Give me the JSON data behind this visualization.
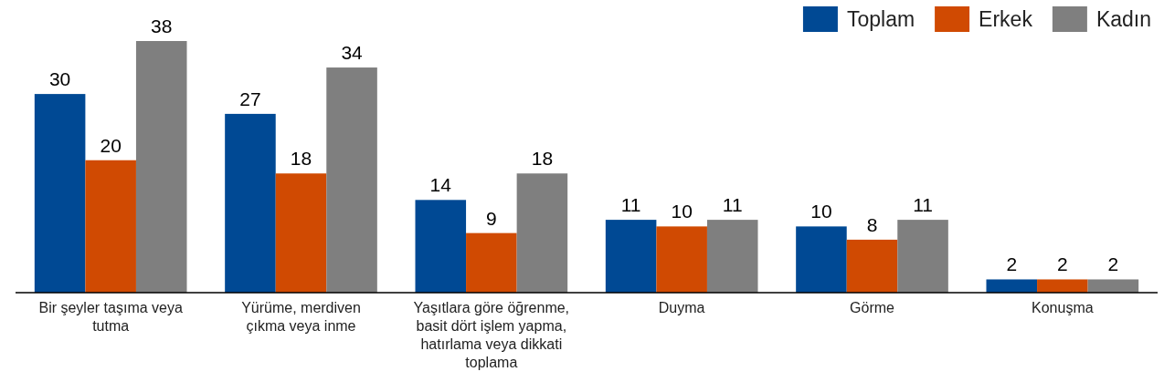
{
  "chart_data": {
    "type": "bar",
    "categories": [
      "Bir şeyler taşıma veya tutma",
      "Yürüme, merdiven çıkma veya inme",
      "Yaşıtlara göre öğrenme, basit dört işlem yapma, hatırlama veya dikkati toplama",
      "Duyma",
      "Görme",
      "Konuşma"
    ],
    "series": [
      {
        "name": "Toplam",
        "color": "#004994",
        "values": [
          30,
          27,
          14,
          11,
          10,
          2
        ]
      },
      {
        "name": "Erkek",
        "color": "#d04a02",
        "values": [
          20,
          18,
          9,
          10,
          8,
          2
        ]
      },
      {
        "name": "Kadın",
        "color": "#7f7f7f",
        "values": [
          38,
          34,
          18,
          11,
          11,
          2
        ]
      }
    ],
    "data_labels": true,
    "legend": "top right"
  }
}
